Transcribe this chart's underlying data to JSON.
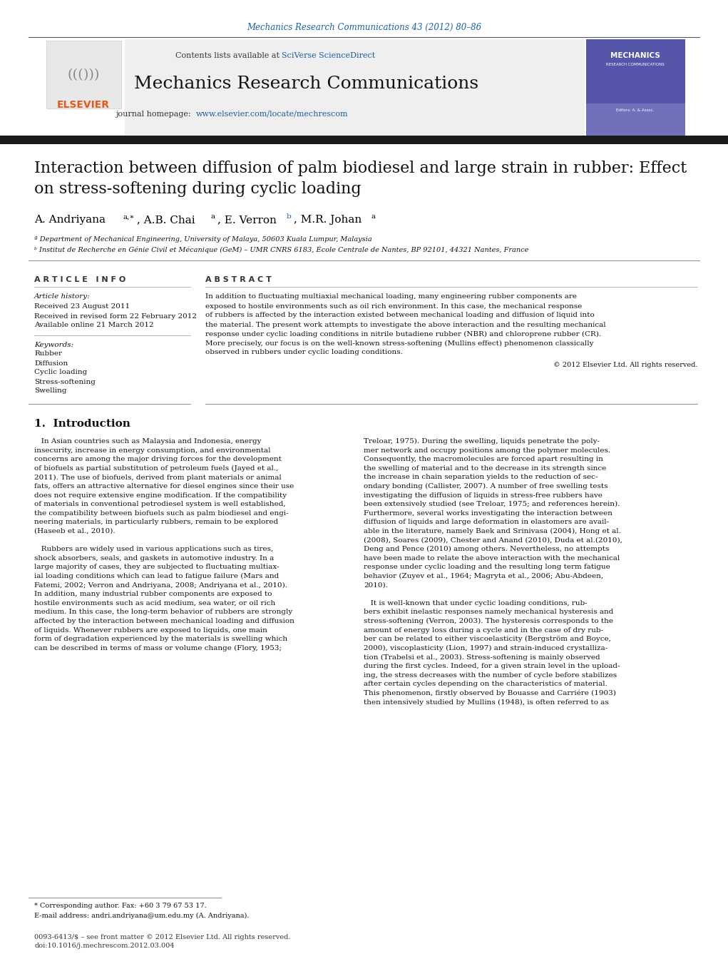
{
  "journal_ref": "Mechanics Research Communications 43 (2012) 80–86",
  "journal_name": "Mechanics Research Communications",
  "journal_url": "www.elsevier.com/locate/mechrescom",
  "paper_title": "Interaction between diffusion of palm biodiesel and large strain in rubber: Effect\non stress-softening during cyclic loading",
  "affiliation_a": "ª Department of Mechanical Engineering, University of Malaya, 50603 Kuala Lumpur, Malaysia",
  "affiliation_b": "ᵇ Institut de Recherche en Génie Civil et Mécanique (GeM) – UMR CNRS 6183, École Centrale de Nantes, BP 92101, 44321 Nantes, France",
  "article_info_title": "A R T I C L E   I N F O",
  "article_history_title": "Article history:",
  "received": "Received 23 August 2011",
  "revised": "Received in revised form 22 February 2012",
  "available": "Available online 21 March 2012",
  "keywords_title": "Keywords:",
  "keywords": [
    "Rubber",
    "Diffusion",
    "Cyclic loading",
    "Stress-softening",
    "Swelling"
  ],
  "abstract_title": "A B S T R A C T",
  "copyright": "© 2012 Elsevier Ltd. All rights reserved.",
  "intro_heading": "1.  Introduction",
  "footnote_corresp": "* Corresponding author. Fax: +60 3 79 67 53 17.",
  "footnote_email": "E-mail address: andri.andriyana@um.edu.my (A. Andriyana).",
  "footer_issn": "0093-6413/$ – see front matter © 2012 Elsevier Ltd. All rights reserved.",
  "footer_doi": "doi:10.1016/j.mechrescom.2012.03.004",
  "header_bg": "#efefef",
  "title_bar_color": "#1a1a1a",
  "link_color": "#1a5ea8",
  "elsevier_orange": "#e8581a",
  "abstract_lines": [
    "In addition to fluctuating multiaxial mechanical loading, many engineering rubber components are",
    "exposed to hostile environments such as oil rich environment. In this case, the mechanical response",
    "of rubbers is affected by the interaction existed between mechanical loading and diffusion of liquid into",
    "the material. The present work attempts to investigate the above interaction and the resulting mechanical",
    "response under cyclic loading conditions in nitrile butadiene rubber (NBR) and chloroprene rubber (CR).",
    "More precisely, our focus is on the well-known stress-softening (Mullins effect) phenomenon classically",
    "observed in rubbers under cyclic loading conditions."
  ],
  "intro_col1_lines": [
    "   In Asian countries such as Malaysia and Indonesia, energy",
    "insecurity, increase in energy consumption, and environmental",
    "concerns are among the major driving forces for the development",
    "of biofuels as partial substitution of petroleum fuels (Jayed et al.,",
    "2011). The use of biofuels, derived from plant materials or animal",
    "fats, offers an attractive alternative for diesel engines since their use",
    "does not require extensive engine modification. If the compatibility",
    "of materials in conventional petrodiesel system is well established,",
    "the compatibility between biofuels such as palm biodiesel and engi-",
    "neering materials, in particularly rubbers, remain to be explored",
    "(Haseeb et al., 2010).",
    "",
    "   Rubbers are widely used in various applications such as tires,",
    "shock absorbers, seals, and gaskets in automotive industry. In a",
    "large majority of cases, they are subjected to fluctuating multiax-",
    "ial loading conditions which can lead to fatigue failure (Mars and",
    "Fatemi, 2002; Verron and Andriyana, 2008; Andriyana et al., 2010).",
    "In addition, many industrial rubber components are exposed to",
    "hostile environments such as acid medium, sea water, or oil rich",
    "medium. In this case, the long-term behavior of rubbers are strongly",
    "affected by the interaction between mechanical loading and diffusion",
    "of liquids. Whenever rubbers are exposed to liquids, one main",
    "form of degradation experienced by the materials is swelling which",
    "can be described in terms of mass or volume change (Flory, 1953;"
  ],
  "intro_col2_lines": [
    "Treloar, 1975). During the swelling, liquids penetrate the poly-",
    "mer network and occupy positions among the polymer molecules.",
    "Consequently, the macromolecules are forced apart resulting in",
    "the swelling of material and to the decrease in its strength since",
    "the increase in chain separation yields to the reduction of sec-",
    "ondary bonding (Callister, 2007). A number of free swelling tests",
    "investigating the diffusion of liquids in stress-free rubbers have",
    "been extensively studied (see Treloar, 1975; and references herein).",
    "Furthermore, several works investigating the interaction between",
    "diffusion of liquids and large deformation in elastomers are avail-",
    "able in the literature, namely Baek and Srinivasa (2004), Hong et al.",
    "(2008), Soares (2009), Chester and Anand (2010), Duda et al.(2010),",
    "Deng and Pence (2010) among others. Nevertheless, no attempts",
    "have been made to relate the above interaction with the mechanical",
    "response under cyclic loading and the resulting long term fatigue",
    "behavior (Zuyev et al., 1964; Magryta et al., 2006; Abu-Abdeen,",
    "2010).",
    "",
    "   It is well-known that under cyclic loading conditions, rub-",
    "bers exhibit inelastic responses namely mechanical hysteresis and",
    "stress-softening (Verron, 2003). The hysteresis corresponds to the",
    "amount of energy loss during a cycle and in the case of dry rub-",
    "ber can be related to either viscoelasticity (Bergström and Boyce,",
    "2000), viscoplasticity (Lion, 1997) and strain-induced crystalliza-",
    "tion (Trabelsi et al., 2003). Stress-softening is mainly observed",
    "during the first cycles. Indeed, for a given strain level in the upload-",
    "ing, the stress decreases with the number of cycle before stabilizes",
    "after certain cycles depending on the characteristics of material.",
    "This phenomenon, firstly observed by Bouasse and Carriére (1903)",
    "then intensively studied by Mullins (1948), is often referred to as"
  ]
}
